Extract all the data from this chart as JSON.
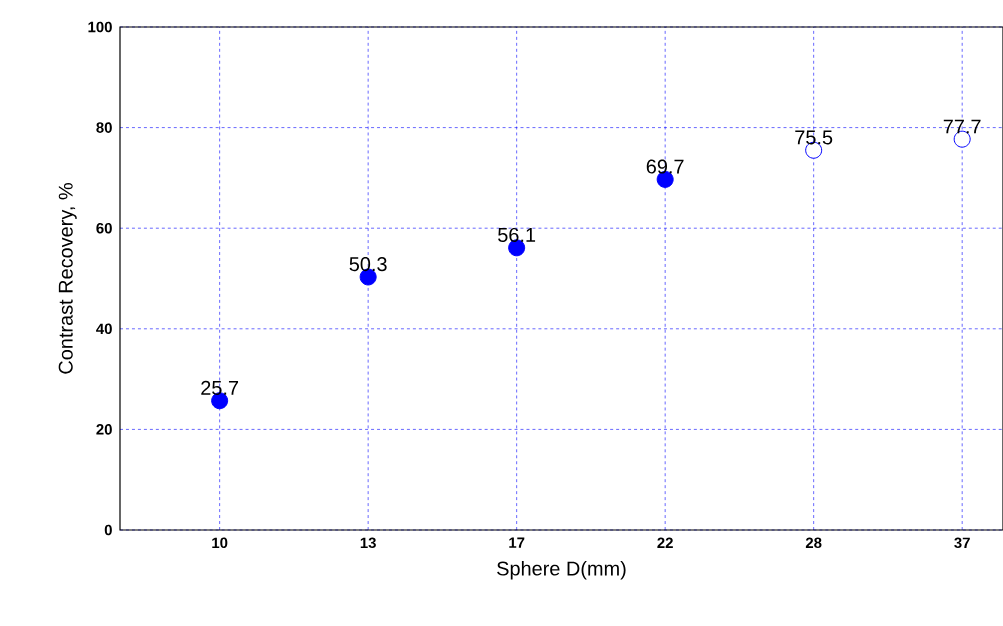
{
  "chart_data": {
    "type": "scatter",
    "xlabel": "Sphere D(mm)",
    "ylabel": "Contrast Recovery, %",
    "categories": [
      "10",
      "13",
      "17",
      "22",
      "28",
      "37"
    ],
    "series": [
      {
        "color": "#0000ff",
        "values": [
          25.7,
          50.3,
          56.1,
          69.7,
          null,
          null
        ]
      },
      {
        "color": "#ffffff",
        "values": [
          null,
          null,
          null,
          null,
          75.5,
          77.7
        ]
      }
    ],
    "ylim": [
      0,
      100
    ],
    "yticks": [
      0,
      20,
      40,
      60,
      80,
      100
    ],
    "grid": true,
    "marker": "circle",
    "data_labels": true
  }
}
